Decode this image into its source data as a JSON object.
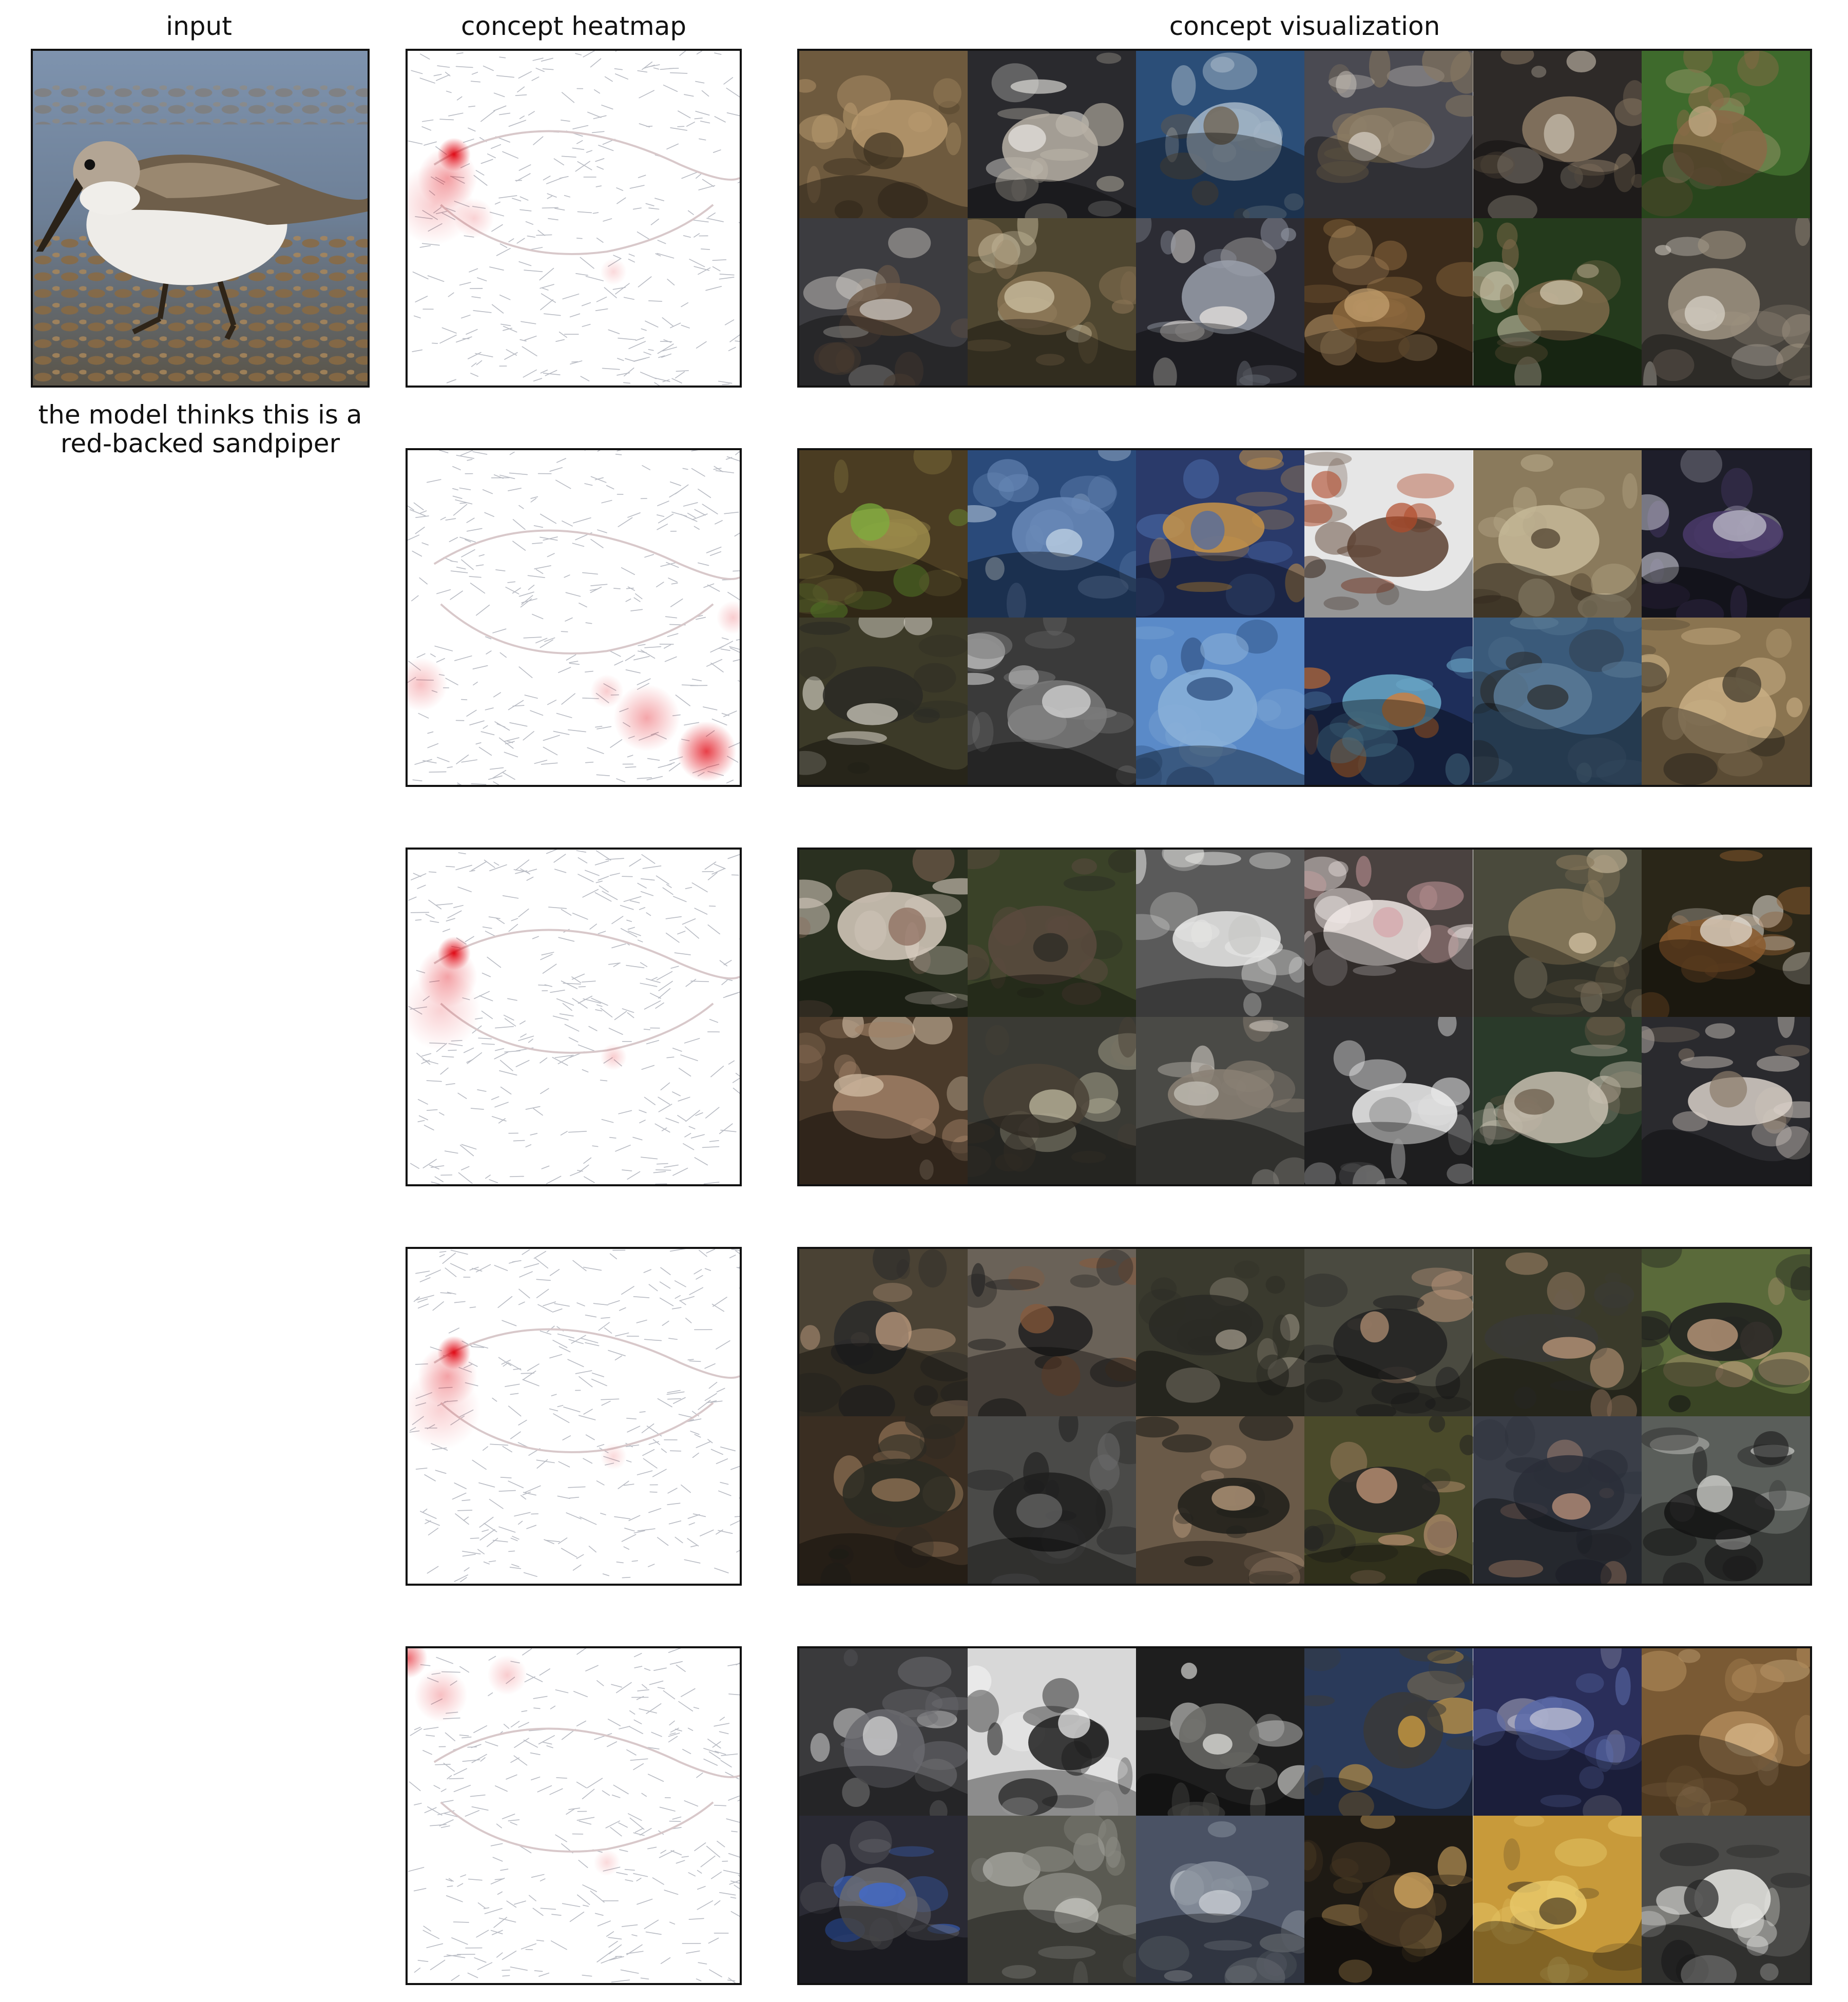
{
  "titles": {
    "input": "input",
    "heatmap": "concept heatmap",
    "visualization": "concept visualization"
  },
  "caption": {
    "line1": "the model thinks this is a",
    "line2": "red-backed sandpiper"
  },
  "colors": {
    "heat": "#e0000c",
    "frame": "#111111",
    "sketch": "#b9bcc4"
  },
  "concepts": [
    {
      "theme": "grouse-and-sandpipers",
      "tiles": [
        {
          "bg": "#6e5a3e",
          "fg": "#b89a6e",
          "accent": "#3c3020"
        },
        {
          "bg": "#2a2a2e",
          "fg": "#b8b2a6",
          "accent": "#e8e6e2"
        },
        {
          "bg": "#2b4e78",
          "fg": "#a6b7c8",
          "accent": "#6a5a44"
        },
        {
          "bg": "#4a4a52",
          "fg": "#8a7a62",
          "accent": "#d8d2c8"
        },
        {
          "bg": "#2e2a28",
          "fg": "#8c7a64",
          "accent": "#ccc2b2"
        },
        {
          "bg": "#3e6a2c",
          "fg": "#8a6a48",
          "accent": "#c8b08a"
        },
        {
          "bg": "#3c3c40",
          "fg": "#6e5a48",
          "accent": "#d0ccc6"
        },
        {
          "bg": "#4e4630",
          "fg": "#8a7454",
          "accent": "#d2c6a8"
        },
        {
          "bg": "#2c2c34",
          "fg": "#9aa0ac",
          "accent": "#ece8e2"
        },
        {
          "bg": "#3a2a1a",
          "fg": "#8e6a3e",
          "accent": "#c8a472"
        },
        {
          "bg": "#243a1c",
          "fg": "#7e6a4a",
          "accent": "#d6ccb2"
        },
        {
          "bg": "#46423c",
          "fg": "#9e9280",
          "accent": "#dcd6cc"
        }
      ]
    },
    {
      "theme": "mixed-textures",
      "tiles": [
        {
          "bg": "#4a3c22",
          "fg": "#9a8a4a",
          "accent": "#7ab03c"
        },
        {
          "bg": "#2a4a7a",
          "fg": "#6a8ab8",
          "accent": "#c8d8e8"
        },
        {
          "bg": "#2a3a6a",
          "fg": "#c89448",
          "accent": "#4a6aa8"
        },
        {
          "bg": "#e6e6e6",
          "fg": "#5a4030",
          "accent": "#b04a2a"
        },
        {
          "bg": "#8a7a5c",
          "fg": "#c6b898",
          "accent": "#4a3c2a"
        },
        {
          "bg": "#1e1e2a",
          "fg": "#4a3a6a",
          "accent": "#c8c8d2"
        },
        {
          "bg": "#3c3a28",
          "fg": "#2a2a24",
          "accent": "#d8d4c8"
        },
        {
          "bg": "#3a3a3a",
          "fg": "#7a7a7a",
          "accent": "#dcdcdc"
        },
        {
          "bg": "#5a8ac8",
          "fg": "#8ab0d8",
          "accent": "#2a4a7a"
        },
        {
          "bg": "#1e2e5a",
          "fg": "#6aa8c8",
          "accent": "#e07a2a"
        },
        {
          "bg": "#3a5a7a",
          "fg": "#5a7a96",
          "accent": "#2a2a2a"
        },
        {
          "bg": "#8a7450",
          "fg": "#c8ae84",
          "accent": "#3a3428"
        }
      ]
    },
    {
      "theme": "ferrets-and-weasels",
      "tiles": [
        {
          "bg": "#2a3020",
          "fg": "#d8ccc0",
          "accent": "#8a6a5a"
        },
        {
          "bg": "#3a4228",
          "fg": "#5a4a3e",
          "accent": "#2a2a24"
        },
        {
          "bg": "#5a5a5a",
          "fg": "#e8e8e6",
          "accent": "#c8c8c6"
        },
        {
          "bg": "#4a4240",
          "fg": "#eee6e4",
          "accent": "#d6a4a8"
        },
        {
          "bg": "#4a4a3c",
          "fg": "#8a7a5c",
          "accent": "#d8c8a8"
        },
        {
          "bg": "#2a2618",
          "fg": "#8a5a2e",
          "accent": "#e8e2d8"
        },
        {
          "bg": "#4a3a2a",
          "fg": "#a08066",
          "accent": "#d4c0a8"
        },
        {
          "bg": "#3a3a34",
          "fg": "#4a4236",
          "accent": "#c8c2a8"
        },
        {
          "bg": "#4a4a46",
          "fg": "#8a8074",
          "accent": "#c8c4bc"
        },
        {
          "bg": "#2e2e30",
          "fg": "#eeeeee",
          "accent": "#9a9a9a"
        },
        {
          "bg": "#2a3a2a",
          "fg": "#c8c0b0",
          "accent": "#6a5a48"
        },
        {
          "bg": "#2a2a2e",
          "fg": "#d8d0c8",
          "accent": "#8a7a6a"
        }
      ]
    },
    {
      "theme": "rifles",
      "tiles": [
        {
          "bg": "#4a4234",
          "fg": "#2a2a2a",
          "accent": "#c8a486"
        },
        {
          "bg": "#6a6258",
          "fg": "#1e1e1e",
          "accent": "#8a5a3a"
        },
        {
          "bg": "#3a3a2e",
          "fg": "#2a2a24",
          "accent": "#a8a090"
        },
        {
          "bg": "#4a4a40",
          "fg": "#222222",
          "accent": "#b89478"
        },
        {
          "bg": "#3a3a2a",
          "fg": "#3a3a36",
          "accent": "#c8a080"
        },
        {
          "bg": "#5a6a3a",
          "fg": "#1e1e1e",
          "accent": "#d0a888"
        },
        {
          "bg": "#3a2e22",
          "fg": "#2a2a22",
          "accent": "#9a7a5a"
        },
        {
          "bg": "#4a4a48",
          "fg": "#1e1e1e",
          "accent": "#6a6a6a"
        },
        {
          "bg": "#6a5a48",
          "fg": "#1e1e1a",
          "accent": "#c8a888"
        },
        {
          "bg": "#4a4a2a",
          "fg": "#222222",
          "accent": "#d0a080"
        },
        {
          "bg": "#3a3e48",
          "fg": "#2a2e38",
          "accent": "#c89a80"
        },
        {
          "bg": "#5a5e5a",
          "fg": "#1e1e1e",
          "accent": "#e0e0dc"
        }
      ]
    },
    {
      "theme": "keyboards-and-grids",
      "tiles": [
        {
          "bg": "#3a3a3c",
          "fg": "#6a6a6e",
          "accent": "#dcdcdc"
        },
        {
          "bg": "#d8d8d8",
          "fg": "#1e1e1e",
          "accent": "#f6f6f6"
        },
        {
          "bg": "#1e1e1e",
          "fg": "#6a6a66",
          "accent": "#e8e8e4"
        },
        {
          "bg": "#2a3a5a",
          "fg": "#3a3a38",
          "accent": "#e0a840"
        },
        {
          "bg": "#2a2e5a",
          "fg": "#5a6aa8",
          "accent": "#c8c8d8"
        },
        {
          "bg": "#7a5a34",
          "fg": "#b08a5a",
          "accent": "#d8b88a"
        },
        {
          "bg": "#2a2a34",
          "fg": "#6a6a6e",
          "accent": "#3a6ad8"
        },
        {
          "bg": "#5a5a52",
          "fg": "#8a8a82",
          "accent": "#cacac4"
        },
        {
          "bg": "#4a5264",
          "fg": "#8a929e",
          "accent": "#d0d4da"
        },
        {
          "bg": "#1e1a14",
          "fg": "#4a3a24",
          "accent": "#e8b86a"
        },
        {
          "bg": "#c89a3a",
          "fg": "#e8c86a",
          "accent": "#4a3a22"
        },
        {
          "bg": "#4a4a48",
          "fg": "#e8e8e4",
          "accent": "#222222"
        }
      ]
    }
  ]
}
